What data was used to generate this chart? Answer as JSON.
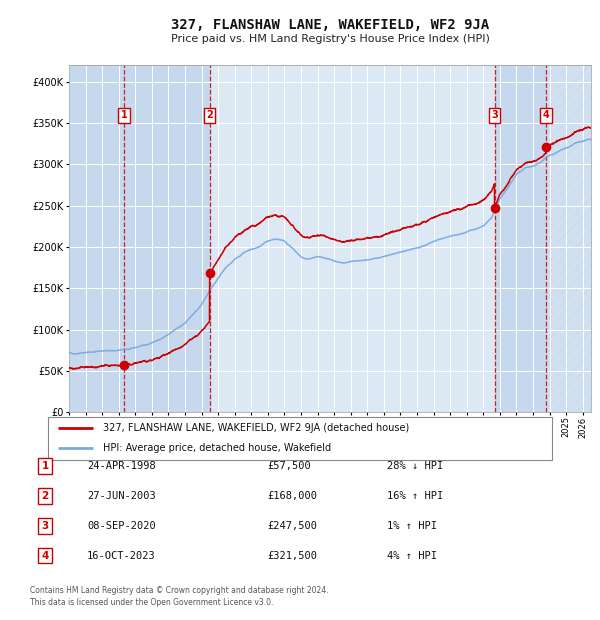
{
  "title": "327, FLANSHAW LANE, WAKEFIELD, WF2 9JA",
  "subtitle": "Price paid vs. HM Land Registry's House Price Index (HPI)",
  "footer": "Contains HM Land Registry data © Crown copyright and database right 2024.\nThis data is licensed under the Open Government Licence v3.0.",
  "legend_line1": "327, FLANSHAW LANE, WAKEFIELD, WF2 9JA (detached house)",
  "legend_line2": "HPI: Average price, detached house, Wakefield",
  "sale_points": [
    {
      "label": "1",
      "date_num": 1998.31,
      "price": 57500
    },
    {
      "label": "2",
      "date_num": 2003.49,
      "price": 168000
    },
    {
      "label": "3",
      "date_num": 2020.68,
      "price": 247500
    },
    {
      "label": "4",
      "date_num": 2023.79,
      "price": 321500
    }
  ],
  "table_rows": [
    {
      "num": "1",
      "date": "24-APR-1998",
      "price": "£57,500",
      "pct": "28% ↓ HPI"
    },
    {
      "num": "2",
      "date": "27-JUN-2003",
      "price": "£168,000",
      "pct": "16% ↑ HPI"
    },
    {
      "num": "3",
      "date": "08-SEP-2020",
      "price": "£247,500",
      "pct": "1% ↑ HPI"
    },
    {
      "num": "4",
      "date": "16-OCT-2023",
      "price": "£321,500",
      "pct": "4% ↑ HPI"
    }
  ],
  "xmin": 1995.0,
  "xmax": 2026.5,
  "ymin": 0,
  "ymax": 420000,
  "yticks": [
    0,
    50000,
    100000,
    150000,
    200000,
    250000,
    300000,
    350000,
    400000
  ],
  "ytick_labels": [
    "£0",
    "£50K",
    "£100K",
    "£150K",
    "£200K",
    "£250K",
    "£300K",
    "£350K",
    "£400K"
  ],
  "plot_bg_color": "#dce9f5",
  "grid_color": "#ffffff",
  "red_line_color": "#cc0000",
  "blue_line_color": "#7aaadd",
  "band_color": "#c5d8ee",
  "hatch_color": "#b0b8cc"
}
